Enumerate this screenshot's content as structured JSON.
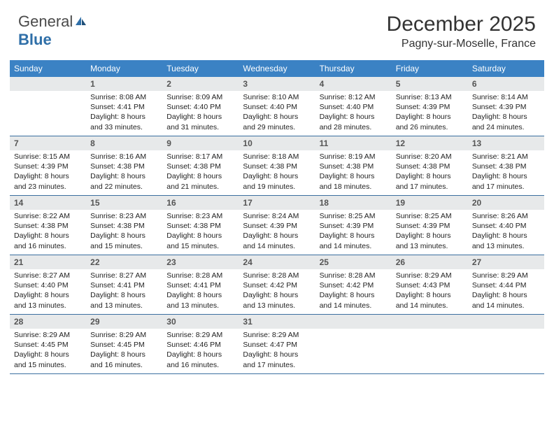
{
  "brand": {
    "part1": "General",
    "part2": "Blue"
  },
  "title": "December 2025",
  "location": "Pagny-sur-Moselle, France",
  "colors": {
    "header_bg": "#3b82c4",
    "daynum_bg": "#e7e9ea",
    "week_border": "#3b6fa0",
    "text": "#222222",
    "title_text": "#333333"
  },
  "fonts": {
    "title_size": 30,
    "location_size": 16,
    "dow_size": 12,
    "body_size": 10.5
  },
  "days_of_week": [
    "Sunday",
    "Monday",
    "Tuesday",
    "Wednesday",
    "Thursday",
    "Friday",
    "Saturday"
  ],
  "weeks": [
    [
      {
        "n": "",
        "sunrise": "",
        "sunset": "",
        "daylight": ""
      },
      {
        "n": "1",
        "sunrise": "Sunrise: 8:08 AM",
        "sunset": "Sunset: 4:41 PM",
        "daylight": "Daylight: 8 hours and 33 minutes."
      },
      {
        "n": "2",
        "sunrise": "Sunrise: 8:09 AM",
        "sunset": "Sunset: 4:40 PM",
        "daylight": "Daylight: 8 hours and 31 minutes."
      },
      {
        "n": "3",
        "sunrise": "Sunrise: 8:10 AM",
        "sunset": "Sunset: 4:40 PM",
        "daylight": "Daylight: 8 hours and 29 minutes."
      },
      {
        "n": "4",
        "sunrise": "Sunrise: 8:12 AM",
        "sunset": "Sunset: 4:40 PM",
        "daylight": "Daylight: 8 hours and 28 minutes."
      },
      {
        "n": "5",
        "sunrise": "Sunrise: 8:13 AM",
        "sunset": "Sunset: 4:39 PM",
        "daylight": "Daylight: 8 hours and 26 minutes."
      },
      {
        "n": "6",
        "sunrise": "Sunrise: 8:14 AM",
        "sunset": "Sunset: 4:39 PM",
        "daylight": "Daylight: 8 hours and 24 minutes."
      }
    ],
    [
      {
        "n": "7",
        "sunrise": "Sunrise: 8:15 AM",
        "sunset": "Sunset: 4:39 PM",
        "daylight": "Daylight: 8 hours and 23 minutes."
      },
      {
        "n": "8",
        "sunrise": "Sunrise: 8:16 AM",
        "sunset": "Sunset: 4:38 PM",
        "daylight": "Daylight: 8 hours and 22 minutes."
      },
      {
        "n": "9",
        "sunrise": "Sunrise: 8:17 AM",
        "sunset": "Sunset: 4:38 PM",
        "daylight": "Daylight: 8 hours and 21 minutes."
      },
      {
        "n": "10",
        "sunrise": "Sunrise: 8:18 AM",
        "sunset": "Sunset: 4:38 PM",
        "daylight": "Daylight: 8 hours and 19 minutes."
      },
      {
        "n": "11",
        "sunrise": "Sunrise: 8:19 AM",
        "sunset": "Sunset: 4:38 PM",
        "daylight": "Daylight: 8 hours and 18 minutes."
      },
      {
        "n": "12",
        "sunrise": "Sunrise: 8:20 AM",
        "sunset": "Sunset: 4:38 PM",
        "daylight": "Daylight: 8 hours and 17 minutes."
      },
      {
        "n": "13",
        "sunrise": "Sunrise: 8:21 AM",
        "sunset": "Sunset: 4:38 PM",
        "daylight": "Daylight: 8 hours and 17 minutes."
      }
    ],
    [
      {
        "n": "14",
        "sunrise": "Sunrise: 8:22 AM",
        "sunset": "Sunset: 4:38 PM",
        "daylight": "Daylight: 8 hours and 16 minutes."
      },
      {
        "n": "15",
        "sunrise": "Sunrise: 8:23 AM",
        "sunset": "Sunset: 4:38 PM",
        "daylight": "Daylight: 8 hours and 15 minutes."
      },
      {
        "n": "16",
        "sunrise": "Sunrise: 8:23 AM",
        "sunset": "Sunset: 4:38 PM",
        "daylight": "Daylight: 8 hours and 15 minutes."
      },
      {
        "n": "17",
        "sunrise": "Sunrise: 8:24 AM",
        "sunset": "Sunset: 4:39 PM",
        "daylight": "Daylight: 8 hours and 14 minutes."
      },
      {
        "n": "18",
        "sunrise": "Sunrise: 8:25 AM",
        "sunset": "Sunset: 4:39 PM",
        "daylight": "Daylight: 8 hours and 14 minutes."
      },
      {
        "n": "19",
        "sunrise": "Sunrise: 8:25 AM",
        "sunset": "Sunset: 4:39 PM",
        "daylight": "Daylight: 8 hours and 13 minutes."
      },
      {
        "n": "20",
        "sunrise": "Sunrise: 8:26 AM",
        "sunset": "Sunset: 4:40 PM",
        "daylight": "Daylight: 8 hours and 13 minutes."
      }
    ],
    [
      {
        "n": "21",
        "sunrise": "Sunrise: 8:27 AM",
        "sunset": "Sunset: 4:40 PM",
        "daylight": "Daylight: 8 hours and 13 minutes."
      },
      {
        "n": "22",
        "sunrise": "Sunrise: 8:27 AM",
        "sunset": "Sunset: 4:41 PM",
        "daylight": "Daylight: 8 hours and 13 minutes."
      },
      {
        "n": "23",
        "sunrise": "Sunrise: 8:28 AM",
        "sunset": "Sunset: 4:41 PM",
        "daylight": "Daylight: 8 hours and 13 minutes."
      },
      {
        "n": "24",
        "sunrise": "Sunrise: 8:28 AM",
        "sunset": "Sunset: 4:42 PM",
        "daylight": "Daylight: 8 hours and 13 minutes."
      },
      {
        "n": "25",
        "sunrise": "Sunrise: 8:28 AM",
        "sunset": "Sunset: 4:42 PM",
        "daylight": "Daylight: 8 hours and 14 minutes."
      },
      {
        "n": "26",
        "sunrise": "Sunrise: 8:29 AM",
        "sunset": "Sunset: 4:43 PM",
        "daylight": "Daylight: 8 hours and 14 minutes."
      },
      {
        "n": "27",
        "sunrise": "Sunrise: 8:29 AM",
        "sunset": "Sunset: 4:44 PM",
        "daylight": "Daylight: 8 hours and 14 minutes."
      }
    ],
    [
      {
        "n": "28",
        "sunrise": "Sunrise: 8:29 AM",
        "sunset": "Sunset: 4:45 PM",
        "daylight": "Daylight: 8 hours and 15 minutes."
      },
      {
        "n": "29",
        "sunrise": "Sunrise: 8:29 AM",
        "sunset": "Sunset: 4:45 PM",
        "daylight": "Daylight: 8 hours and 16 minutes."
      },
      {
        "n": "30",
        "sunrise": "Sunrise: 8:29 AM",
        "sunset": "Sunset: 4:46 PM",
        "daylight": "Daylight: 8 hours and 16 minutes."
      },
      {
        "n": "31",
        "sunrise": "Sunrise: 8:29 AM",
        "sunset": "Sunset: 4:47 PM",
        "daylight": "Daylight: 8 hours and 17 minutes."
      },
      {
        "n": "",
        "sunrise": "",
        "sunset": "",
        "daylight": ""
      },
      {
        "n": "",
        "sunrise": "",
        "sunset": "",
        "daylight": ""
      },
      {
        "n": "",
        "sunrise": "",
        "sunset": "",
        "daylight": ""
      }
    ]
  ]
}
